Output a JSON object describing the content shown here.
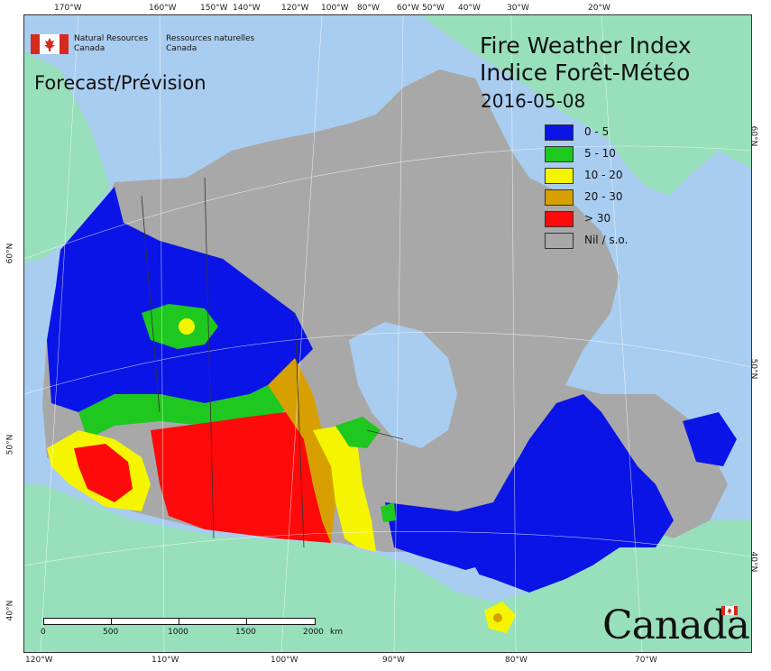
{
  "map": {
    "title_en": "Fire Weather Index",
    "title_fr": "Indice Forêt-Météo",
    "date": "2016-05-08",
    "forecast_label": "Forecast/Prévision",
    "colors": {
      "ocean": "#a9cdf0",
      "land_other": "#98e0bc",
      "nil": "#a8a8a8",
      "fwi_0_5": "#0a14e6",
      "fwi_5_10": "#1ec81e",
      "fwi_10_20": "#f5f500",
      "fwi_20_30": "#d7a000",
      "fwi_gt_30": "#ff0a0a"
    }
  },
  "agency": {
    "name_en_line1": "Natural Resources",
    "name_en_line2": "Canada",
    "name_fr_line1": "Ressources naturelles",
    "name_fr_line2": "Canada"
  },
  "legend": {
    "items": [
      {
        "label": "0 - 5",
        "color": "#0a14e6"
      },
      {
        "label": "5 - 10",
        "color": "#1ec81e"
      },
      {
        "label": "10 - 20",
        "color": "#f5f500"
      },
      {
        "label": "20 - 30",
        "color": "#d7a000"
      },
      {
        "label": "> 30",
        "color": "#ff0a0a"
      },
      {
        "label": "Nil / s.o.",
        "color": "#a8a8a8"
      }
    ]
  },
  "graticule": {
    "top": [
      "170°W",
      "160°W",
      "150°W",
      "140°W",
      "120°W",
      "100°W",
      "80°W",
      "60°W",
      "50°W",
      "40°W",
      "30°W",
      "20°W"
    ],
    "bottom": [
      "120°W",
      "110°W",
      "100°W",
      "90°W",
      "80°W",
      "70°W"
    ],
    "left": [
      "60°N",
      "50°N",
      "40°N"
    ],
    "right": [
      "60°N",
      "50°N",
      "40°N"
    ]
  },
  "scale": {
    "labels": [
      "0",
      "500",
      "1000",
      "1500",
      "2000"
    ],
    "unit": "km"
  },
  "wordmark": "Canada"
}
